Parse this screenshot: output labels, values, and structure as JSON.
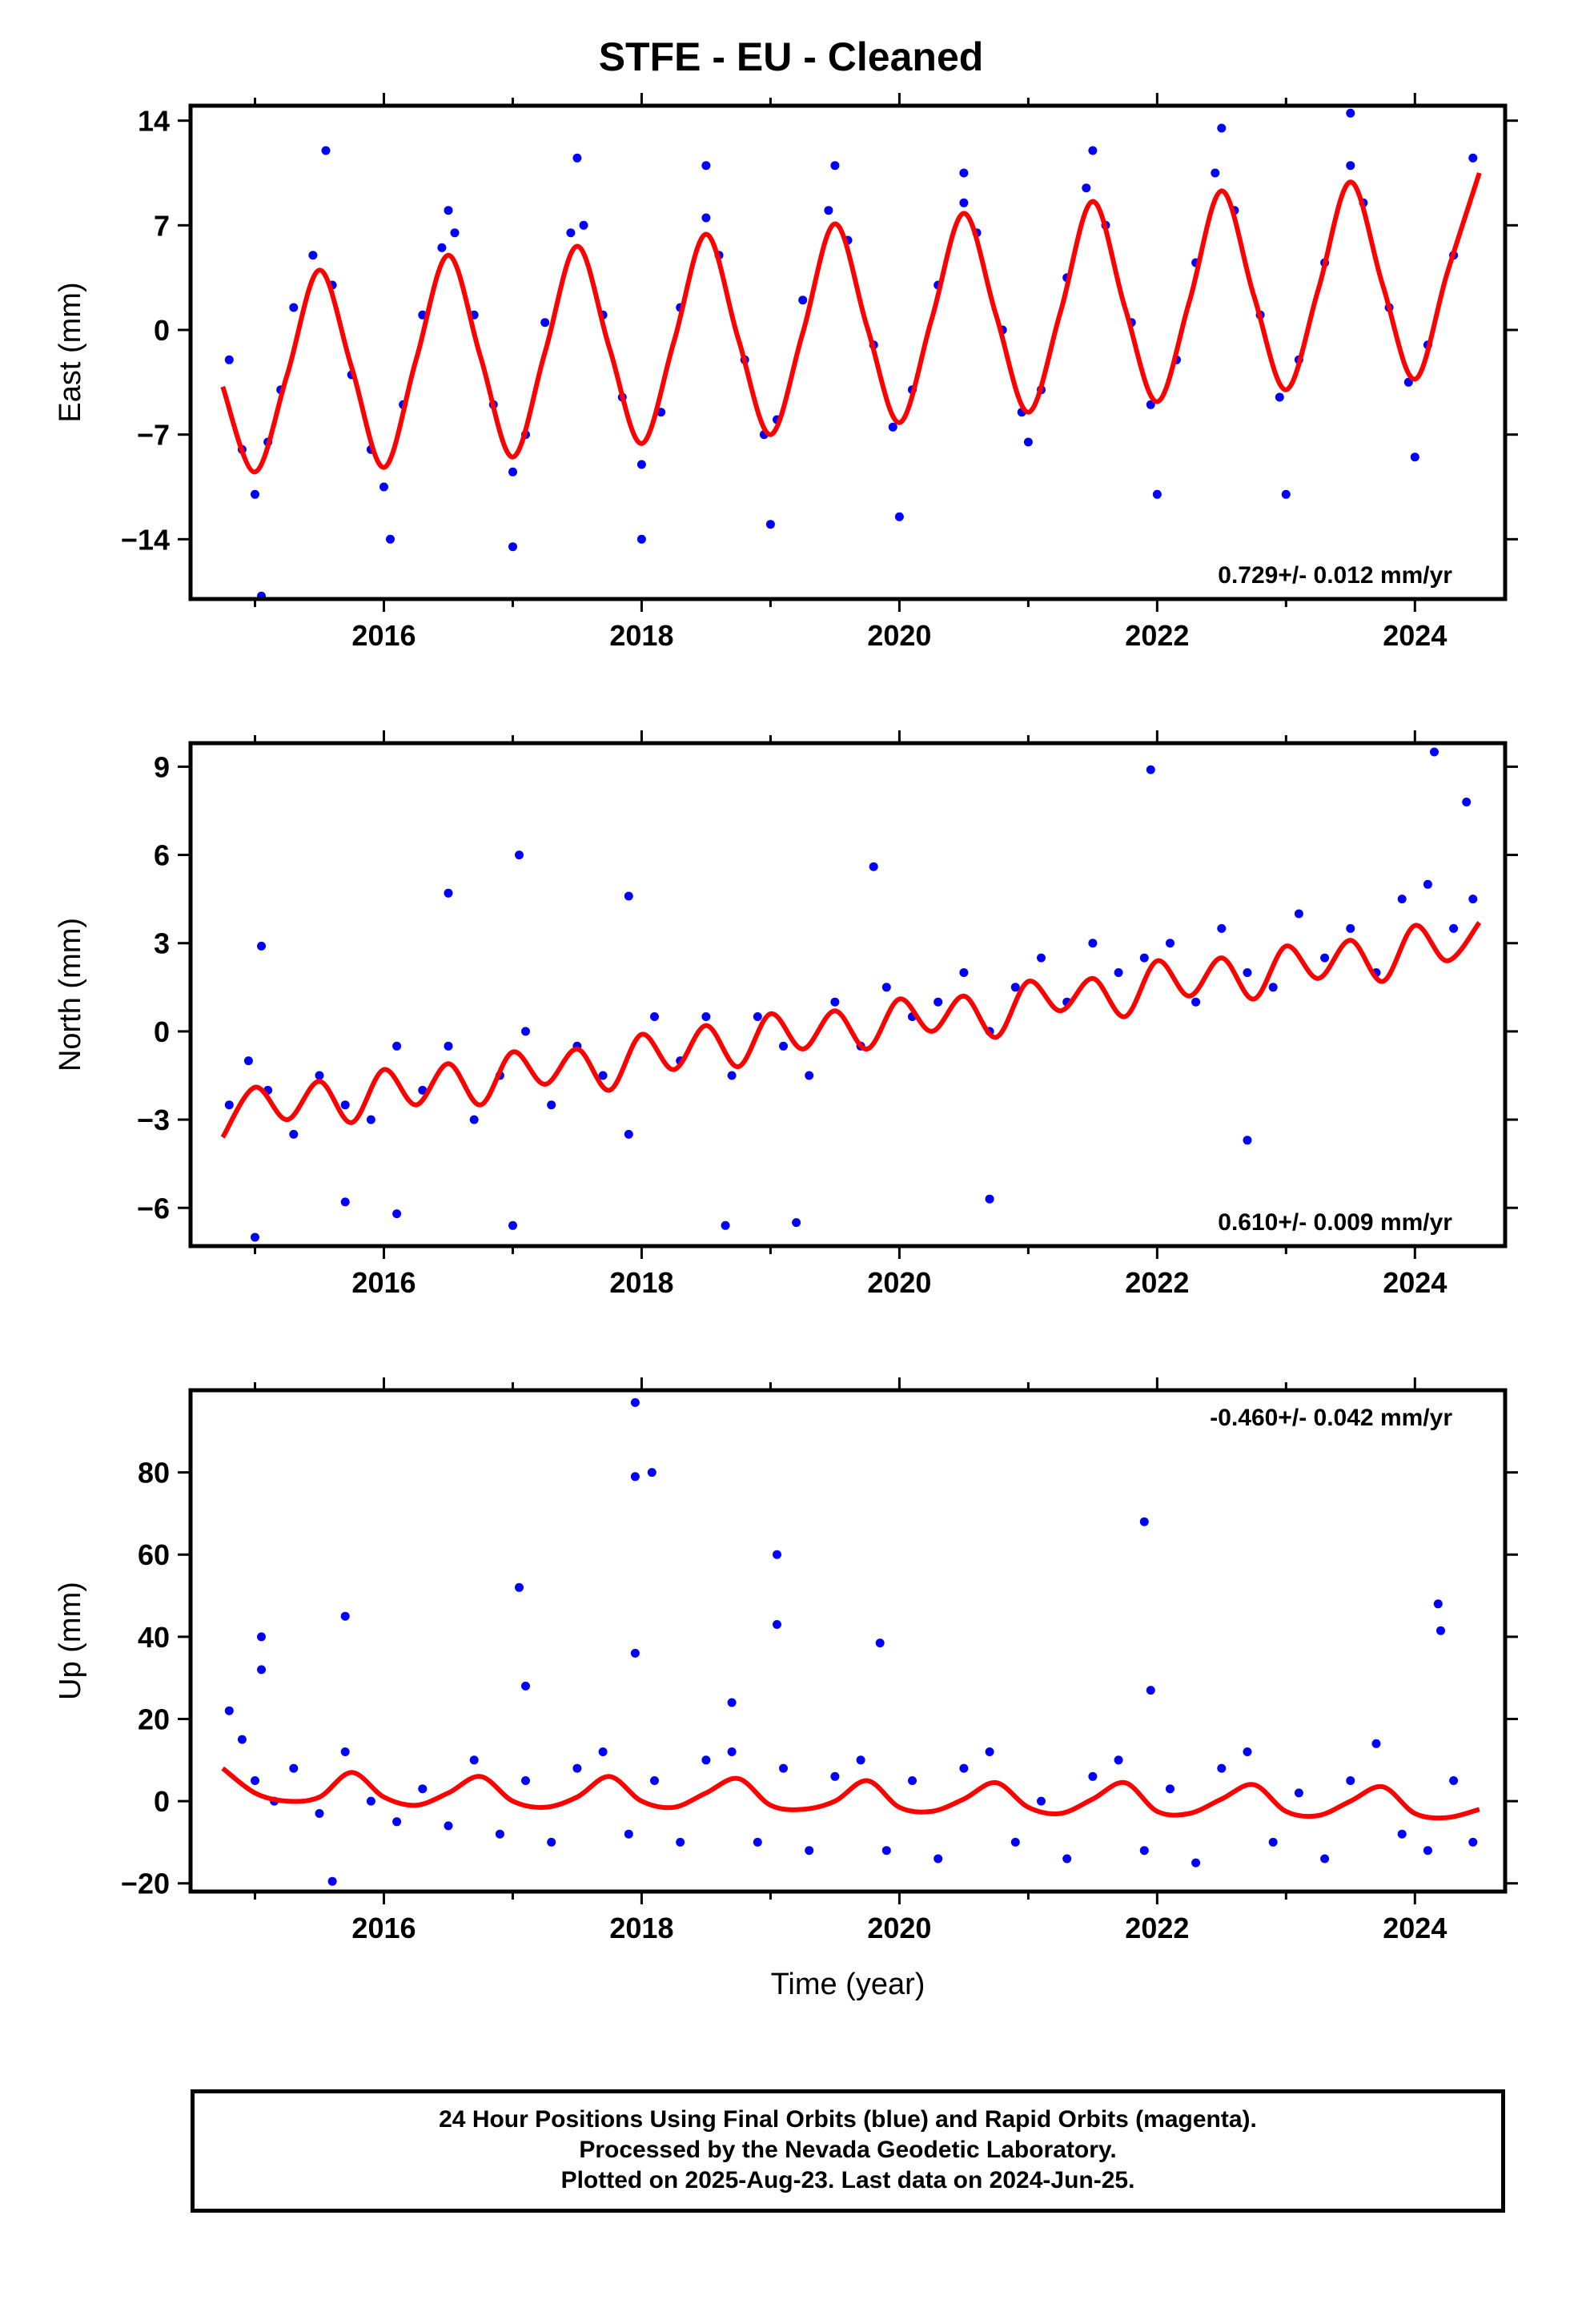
{
  "title": "STFE  - EU - Cleaned",
  "footer": {
    "line1": "24 Hour Positions Using Final Orbits (blue) and Rapid Orbits (magenta).",
    "line2": "Processed by the Nevada Geodetic Laboratory.",
    "line3": "Plotted on 2025-Aug-23. Last data on 2024-Jun-25."
  },
  "colors": {
    "points": "#0000ff",
    "model": "#ff0000",
    "frame": "#000000"
  },
  "chart_data": [
    {
      "type": "scatter",
      "ylabel": "East (mm)",
      "xlabel": "",
      "rate_label": "0.729+/- 0.012 mm/yr",
      "rate_label_position": "bottom-right",
      "xlim": [
        2014.5,
        2024.7
      ],
      "ylim": [
        -18,
        15
      ],
      "xticks": [
        2016,
        2018,
        2020,
        2022,
        2024
      ],
      "yticks": [
        14,
        7,
        0,
        -7,
        -14
      ],
      "series": [
        {
          "kind": "model",
          "x": [
            2014.75,
            2015.0,
            2015.25,
            2015.5,
            2015.75,
            2016.0,
            2016.25,
            2016.5,
            2016.75,
            2017.0,
            2017.25,
            2017.5,
            2017.75,
            2018.0,
            2018.25,
            2018.5,
            2018.75,
            2019.0,
            2019.25,
            2019.5,
            2019.75,
            2020.0,
            2020.25,
            2020.5,
            2020.75,
            2021.0,
            2021.25,
            2021.5,
            2021.75,
            2022.0,
            2022.25,
            2022.5,
            2022.75,
            2023.0,
            2023.25,
            2023.5,
            2023.75,
            2024.0,
            2024.25,
            2024.5
          ],
          "y": [
            -3.8,
            -9.5,
            -3.0,
            4.0,
            -2.5,
            -9.2,
            -2.0,
            5.0,
            -1.8,
            -8.5,
            -1.5,
            5.6,
            -1.2,
            -7.6,
            -0.8,
            6.4,
            -0.6,
            -7.0,
            -0.2,
            7.1,
            0.2,
            -6.2,
            0.7,
            7.8,
            1.0,
            -5.5,
            1.2,
            8.6,
            1.5,
            -4.8,
            1.9,
            9.3,
            2.3,
            -4.0,
            2.7,
            9.9,
            3.0,
            -3.3,
            3.8,
            10.5
          ]
        },
        {
          "kind": "points",
          "x": [
            2014.8,
            2014.9,
            2015.0,
            2015.1,
            2015.2,
            2015.3,
            2015.45,
            2015.6,
            2015.75,
            2015.9,
            2016.0,
            2016.15,
            2016.3,
            2016.45,
            2016.55,
            2016.7,
            2016.85,
            2017.0,
            2017.1,
            2017.25,
            2017.45,
            2017.55,
            2017.7,
            2017.85,
            2018.0,
            2018.15,
            2018.3,
            2018.5,
            2018.6,
            2018.8,
            2018.95,
            2019.05,
            2019.25,
            2019.45,
            2019.6,
            2019.8,
            2019.95,
            2020.1,
            2020.3,
            2020.5,
            2020.6,
            2020.8,
            2020.95,
            2021.1,
            2021.3,
            2021.45,
            2021.6,
            2021.8,
            2021.95,
            2022.15,
            2022.3,
            2022.45,
            2022.6,
            2022.8,
            2022.95,
            2023.1,
            2023.3,
            2023.5,
            2023.6,
            2023.8,
            2023.95,
            2024.1,
            2024.3,
            2024.45,
            2015.05,
            2015.55,
            2016.05,
            2016.5,
            2017.0,
            2017.5,
            2018.0,
            2018.5,
            2019.0,
            2019.5,
            2020.0,
            2020.5,
            2021.0,
            2021.5,
            2022.0,
            2022.5,
            2023.0,
            2023.5,
            2024.0
          ],
          "y": [
            -2.0,
            -8.0,
            -11.0,
            -7.5,
            -4.0,
            1.5,
            5.0,
            3.0,
            -3.0,
            -8.0,
            -10.5,
            -5.0,
            1.0,
            5.5,
            6.5,
            1.0,
            -5.0,
            -9.5,
            -7.0,
            0.5,
            6.5,
            7.0,
            1.0,
            -4.5,
            -9.0,
            -5.5,
            1.5,
            7.5,
            5.0,
            -2.0,
            -7.0,
            -6.0,
            2.0,
            8.0,
            6.0,
            -1.0,
            -6.5,
            -4.0,
            3.0,
            8.5,
            6.5,
            0.0,
            -5.5,
            -4.0,
            3.5,
            9.5,
            7.0,
            0.5,
            -5.0,
            -2.0,
            4.5,
            10.5,
            8.0,
            1.0,
            -4.5,
            -2.0,
            4.5,
            11.0,
            8.5,
            1.5,
            -3.5,
            -1.0,
            5.0,
            11.5,
            -17.8,
            12.0,
            -14.0,
            8.0,
            -14.5,
            11.5,
            -14.0,
            11.0,
            -13.0,
            11.0,
            -12.5,
            10.5,
            -7.5,
            12.0,
            -11.0,
            13.5,
            -11.0,
            14.5,
            -8.5
          ]
        }
      ]
    },
    {
      "type": "scatter",
      "ylabel": "North (mm)",
      "xlabel": "",
      "rate_label": "0.610+/- 0.009 mm/yr",
      "rate_label_position": "bottom-right",
      "xlim": [
        2014.5,
        2024.7
      ],
      "ylim": [
        -7.3,
        9.8
      ],
      "xticks": [
        2016,
        2018,
        2020,
        2022,
        2024
      ],
      "yticks": [
        9,
        6,
        3,
        0,
        -3,
        -6
      ],
      "series": [
        {
          "kind": "model",
          "x": [
            2014.75,
            2015.0,
            2015.25,
            2015.5,
            2015.75,
            2016.0,
            2016.25,
            2016.5,
            2016.75,
            2017.0,
            2017.25,
            2017.5,
            2017.75,
            2018.0,
            2018.25,
            2018.5,
            2018.75,
            2019.0,
            2019.25,
            2019.5,
            2019.75,
            2020.0,
            2020.25,
            2020.5,
            2020.75,
            2021.0,
            2021.25,
            2021.5,
            2021.75,
            2022.0,
            2022.25,
            2022.5,
            2022.75,
            2023.0,
            2023.25,
            2023.5,
            2023.75,
            2024.0,
            2024.25,
            2024.5
          ],
          "y": [
            -3.6,
            -1.9,
            -3.0,
            -1.7,
            -3.1,
            -1.3,
            -2.5,
            -1.1,
            -2.5,
            -0.7,
            -1.8,
            -0.6,
            -2.0,
            -0.1,
            -1.3,
            0.2,
            -1.2,
            0.6,
            -0.6,
            0.7,
            -0.6,
            1.1,
            0.0,
            1.2,
            -0.2,
            1.7,
            0.7,
            1.8,
            0.5,
            2.4,
            1.2,
            2.5,
            1.1,
            2.9,
            1.8,
            3.1,
            1.7,
            3.6,
            2.4,
            3.7
          ]
        },
        {
          "kind": "points",
          "x": [
            2014.8,
            2014.95,
            2015.1,
            2015.3,
            2015.5,
            2015.7,
            2015.9,
            2016.1,
            2016.3,
            2016.5,
            2016.7,
            2016.9,
            2017.1,
            2017.3,
            2017.5,
            2017.7,
            2017.9,
            2018.1,
            2018.3,
            2018.5,
            2018.7,
            2018.9,
            2019.1,
            2019.3,
            2019.5,
            2019.7,
            2019.9,
            2020.1,
            2020.3,
            2020.5,
            2020.7,
            2020.9,
            2021.1,
            2021.3,
            2021.5,
            2021.7,
            2021.9,
            2022.1,
            2022.3,
            2022.5,
            2022.7,
            2022.9,
            2023.1,
            2023.3,
            2023.5,
            2023.7,
            2023.9,
            2024.1,
            2024.3,
            2024.45,
            2015.0,
            2015.05,
            2016.5,
            2017.05,
            2017.0,
            2017.9,
            2018.65,
            2019.2,
            2019.8,
            2020.7,
            2021.95,
            2022.7,
            2024.15,
            2024.4,
            2015.7,
            2016.1
          ],
          "y": [
            -2.5,
            -1.0,
            -2.0,
            -3.5,
            -1.5,
            -2.5,
            -3.0,
            -0.5,
            -2.0,
            -0.5,
            -3.0,
            -1.5,
            0.0,
            -2.5,
            -0.5,
            -1.5,
            -3.5,
            0.5,
            -1.0,
            0.5,
            -1.5,
            0.5,
            -0.5,
            -1.5,
            1.0,
            -0.5,
            1.5,
            0.5,
            1.0,
            2.0,
            0.0,
            1.5,
            2.5,
            1.0,
            3.0,
            2.0,
            2.5,
            3.0,
            1.0,
            3.5,
            2.0,
            1.5,
            4.0,
            2.5,
            3.5,
            2.0,
            4.5,
            5.0,
            3.5,
            4.5,
            -7.0,
            2.9,
            4.7,
            6.0,
            -6.6,
            4.6,
            -6.6,
            -6.5,
            5.6,
            -5.7,
            8.9,
            -3.7,
            9.5,
            7.8,
            -5.8,
            -6.2
          ]
        }
      ]
    },
    {
      "type": "scatter",
      "ylabel": "Up (mm)",
      "xlabel": "Time (year)",
      "rate_label": "-0.460+/- 0.042 mm/yr",
      "rate_label_position": "top-right",
      "xlim": [
        2014.5,
        2024.7
      ],
      "ylim": [
        -22,
        100
      ],
      "xticks": [
        2016,
        2018,
        2020,
        2022,
        2024
      ],
      "yticks": [
        80,
        60,
        40,
        20,
        0,
        -20
      ],
      "series": [
        {
          "kind": "model",
          "x": [
            2014.75,
            2015.0,
            2015.25,
            2015.5,
            2015.75,
            2016.0,
            2016.25,
            2016.5,
            2016.75,
            2017.0,
            2017.25,
            2017.5,
            2017.75,
            2018.0,
            2018.25,
            2018.5,
            2018.75,
            2019.0,
            2019.25,
            2019.5,
            2019.75,
            2020.0,
            2020.25,
            2020.5,
            2020.75,
            2021.0,
            2021.25,
            2021.5,
            2021.75,
            2022.0,
            2022.25,
            2022.5,
            2022.75,
            2023.0,
            2023.25,
            2023.5,
            2023.75,
            2024.0,
            2024.25,
            2024.5
          ],
          "y": [
            8.0,
            2.0,
            0.0,
            1.0,
            7.0,
            1.0,
            -1.0,
            2.0,
            6.0,
            0.0,
            -1.5,
            1.0,
            6.0,
            0.0,
            -1.5,
            2.0,
            5.5,
            -1.0,
            -2.0,
            0.0,
            5.0,
            -1.5,
            -2.5,
            0.5,
            4.5,
            -1.5,
            -3.0,
            0.5,
            4.5,
            -2.5,
            -3.0,
            0.5,
            4.0,
            -2.5,
            -3.5,
            0.0,
            3.5,
            -3.0,
            -4.0,
            -2.0
          ]
        },
        {
          "kind": "points",
          "x": [
            2014.8,
            2014.9,
            2015.0,
            2015.15,
            2015.3,
            2015.5,
            2015.7,
            2015.9,
            2016.1,
            2016.3,
            2016.5,
            2016.7,
            2016.9,
            2017.1,
            2017.3,
            2017.5,
            2017.7,
            2017.9,
            2018.1,
            2018.3,
            2018.5,
            2018.7,
            2018.9,
            2019.1,
            2019.3,
            2019.5,
            2019.7,
            2019.9,
            2020.1,
            2020.3,
            2020.5,
            2020.7,
            2020.9,
            2021.1,
            2021.3,
            2021.5,
            2021.7,
            2021.9,
            2022.1,
            2022.3,
            2022.5,
            2022.7,
            2022.9,
            2023.1,
            2023.3,
            2023.5,
            2023.7,
            2023.9,
            2024.1,
            2024.3,
            2024.45,
            2015.05,
            2015.05,
            2015.7,
            2017.05,
            2017.1,
            2017.95,
            2017.95,
            2018.08,
            2017.95,
            2018.7,
            2019.05,
            2019.05,
            2019.85,
            2021.9,
            2021.95,
            2024.18,
            2024.2,
            2015.6
          ],
          "y": [
            22.0,
            15.0,
            5.0,
            0.0,
            8.0,
            -3.0,
            12.0,
            0.0,
            -5.0,
            3.0,
            -6.0,
            10.0,
            -8.0,
            5.0,
            -10.0,
            8.0,
            12.0,
            -8.0,
            5.0,
            -10.0,
            10.0,
            12.0,
            -10.0,
            8.0,
            -12.0,
            6.0,
            10.0,
            -12.0,
            5.0,
            -14.0,
            8.0,
            12.0,
            -10.0,
            0.0,
            -14.0,
            6.0,
            10.0,
            -12.0,
            3.0,
            -15.0,
            8.0,
            12.0,
            -10.0,
            2.0,
            -14.0,
            5.0,
            14.0,
            -8.0,
            -12.0,
            5.0,
            -10.0,
            40.0,
            32.0,
            45.0,
            52.0,
            28.0,
            97.0,
            79.0,
            80.0,
            36.0,
            24.0,
            60.0,
            43.0,
            38.5,
            68.0,
            27.0,
            48.0,
            41.5,
            -19.5
          ]
        }
      ]
    }
  ]
}
